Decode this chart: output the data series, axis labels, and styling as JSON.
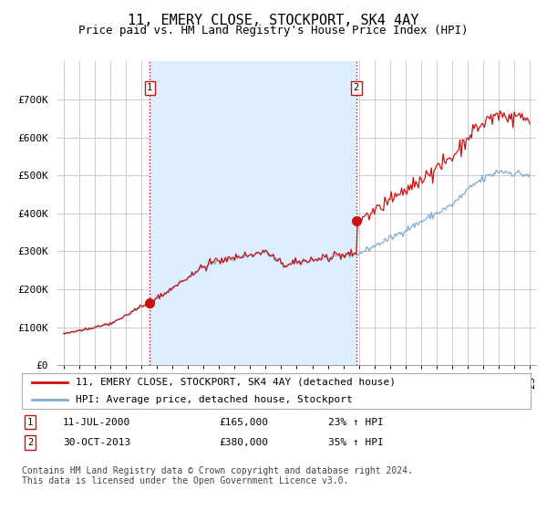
{
  "title": "11, EMERY CLOSE, STOCKPORT, SK4 4AY",
  "subtitle": "Price paid vs. HM Land Registry's House Price Index (HPI)",
  "ylim": [
    0,
    800000
  ],
  "yticks": [
    0,
    100000,
    200000,
    300000,
    400000,
    500000,
    600000,
    700000
  ],
  "ytick_labels": [
    "£0",
    "£100K",
    "£200K",
    "£300K",
    "£400K",
    "£500K",
    "£600K",
    "£700K"
  ],
  "background_color": "#ffffff",
  "plot_bg_color": "#ffffff",
  "grid_color": "#cccccc",
  "shade_color": "#ddeeff",
  "sale1_date": 2000.54,
  "sale1_price": 165000,
  "sale2_date": 2013.83,
  "sale2_price": 380000,
  "vline_color": "#dd0000",
  "vline_style": ":",
  "red_line_color": "#cc1111",
  "blue_line_color": "#7dadd4",
  "legend_label_red": "11, EMERY CLOSE, STOCKPORT, SK4 4AY (detached house)",
  "legend_label_blue": "HPI: Average price, detached house, Stockport",
  "annotation1_num": "1",
  "annotation1_date": "11-JUL-2000",
  "annotation1_price": "£165,000",
  "annotation1_hpi": "23% ↑ HPI",
  "annotation2_num": "2",
  "annotation2_date": "30-OCT-2013",
  "annotation2_price": "£380,000",
  "annotation2_hpi": "35% ↑ HPI",
  "footer": "Contains HM Land Registry data © Crown copyright and database right 2024.\nThis data is licensed under the Open Government Licence v3.0.",
  "title_fontsize": 11,
  "subtitle_fontsize": 9,
  "axis_fontsize": 8,
  "legend_fontsize": 8,
  "annotation_fontsize": 8,
  "footer_fontsize": 7
}
